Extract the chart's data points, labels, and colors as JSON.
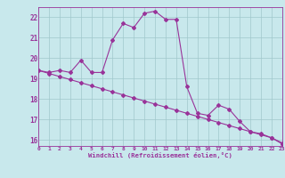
{
  "xlabel": "Windchill (Refroidissement éolien,°C)",
  "x_hours": [
    0,
    1,
    2,
    3,
    4,
    5,
    6,
    7,
    8,
    9,
    10,
    11,
    12,
    13,
    14,
    15,
    16,
    17,
    18,
    19,
    20,
    21,
    22,
    23
  ],
  "y_main": [
    19.4,
    19.3,
    19.4,
    19.3,
    19.9,
    19.3,
    19.3,
    20.9,
    21.7,
    21.5,
    22.2,
    22.3,
    21.9,
    21.9,
    18.6,
    17.3,
    17.2,
    17.7,
    17.5,
    16.9,
    16.4,
    16.3,
    16.1,
    15.8
  ],
  "y_trend": [
    19.4,
    19.25,
    19.1,
    18.95,
    18.8,
    18.65,
    18.5,
    18.35,
    18.2,
    18.05,
    17.9,
    17.75,
    17.6,
    17.45,
    17.3,
    17.15,
    17.0,
    16.85,
    16.7,
    16.55,
    16.4,
    16.25,
    16.1,
    15.85
  ],
  "line_color": "#993399",
  "bg_color": "#c8e8ec",
  "grid_color": "#a0c8cc",
  "xlim": [
    0,
    23
  ],
  "ylim": [
    15.7,
    22.5
  ],
  "yticks": [
    16,
    17,
    18,
    19,
    20,
    21,
    22
  ],
  "xticks": [
    0,
    1,
    2,
    3,
    4,
    5,
    6,
    7,
    8,
    9,
    10,
    11,
    12,
    13,
    14,
    15,
    16,
    17,
    18,
    19,
    20,
    21,
    22,
    23
  ]
}
